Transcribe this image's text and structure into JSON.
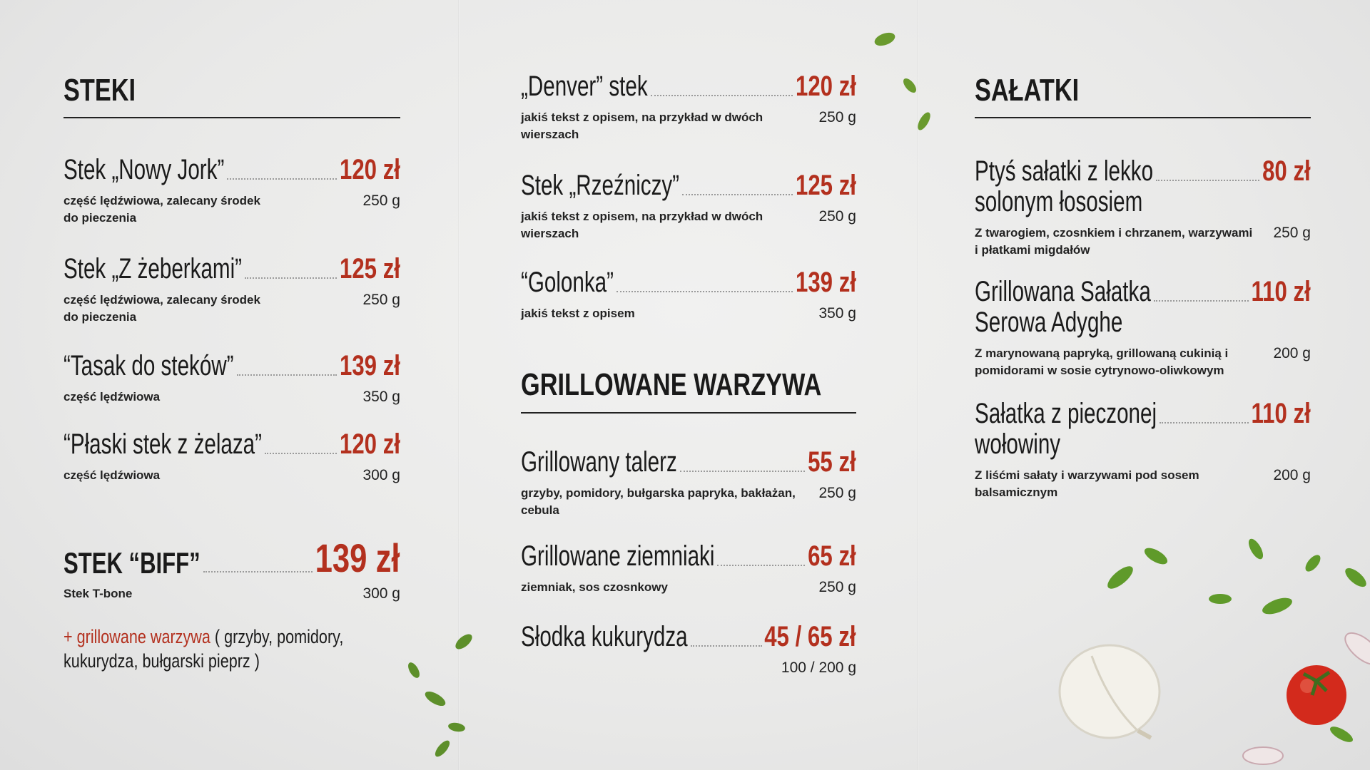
{
  "colors": {
    "price": "#b3301e",
    "text": "#1a1a1a",
    "background": "#ececec"
  },
  "steki": {
    "title": "STEKI",
    "items": [
      {
        "name": "Stek „Nowy Jork”",
        "price": "120 zł",
        "desc": "część lędźwiowa, zalecany środek do pieczenia",
        "weight": "250 g"
      },
      {
        "name": "Stek „Z żeberkami”",
        "price": "125 zł",
        "desc": "część lędźwiowa, zalecany środek do pieczenia",
        "weight": "250 g"
      },
      {
        "name": "“Tasak do steków”",
        "price": "139 zł",
        "desc": "część lędźwiowa",
        "weight": "350 g"
      },
      {
        "name": "“Płaski stek z żelaza”",
        "price": "120 zł",
        "desc": "część lędźwiowa",
        "weight": "300 g"
      }
    ],
    "biff": {
      "name": "STEK “BIFF”",
      "price": "139 zł",
      "desc": "Stek T-bone",
      "weight": "300 g",
      "extra_red": "+ grillowane warzywa",
      "extra_rest": " ( grzyby, pomidory, kukurydza, bułgarski pieprz )"
    }
  },
  "middle": {
    "items": [
      {
        "name": "„Denver” stek",
        "price": "120 zł",
        "desc": "jakiś tekst z opisem, na przykład w dwóch wierszach",
        "weight": "250 g"
      },
      {
        "name": "Stek „Rzeźniczy”",
        "price": "125 zł",
        "desc": "jakiś tekst z opisem, na przykład w dwóch wierszach",
        "weight": "250 g"
      },
      {
        "name": "“Golonka”",
        "price": "139 zł",
        "desc": "jakiś tekst z opisem",
        "weight": "350 g"
      }
    ]
  },
  "warzywa": {
    "title": "GRILLOWANE WARZYWA",
    "items": [
      {
        "name": "Grillowany talerz",
        "price": "55 zł",
        "desc": "grzyby, pomidory, bułgarska papryka, bakłażan, cebula",
        "weight": "250 g"
      },
      {
        "name": "Grillowane ziemniaki",
        "price": "65 zł",
        "desc": "ziemniak, sos czosnkowy",
        "weight": "250 g"
      },
      {
        "name": "Słodka kukurydza",
        "price": "45 / 65 zł",
        "desc": "",
        "weight": "100 / 200 g"
      }
    ]
  },
  "salatki": {
    "title": "SAŁATKI",
    "items": [
      {
        "name": "Ptyś sałatki z lekko",
        "name2": "solonym łososiem",
        "price": "80 zł",
        "desc": "Z twarogiem, czosnkiem i chrzanem, warzywami i płatkami migdałów",
        "weight": "250 g"
      },
      {
        "name": "Grillowana Sałatka",
        "name2": "Serowa Adyghe",
        "price": "110 zł",
        "desc": "Z marynowaną papryką, grillowaną cukinią i pomidorami w sosie cytrynowo-oliwkowym",
        "weight": "200 g"
      },
      {
        "name": "Sałatka z pieczonej",
        "name2": "wołowiny",
        "price": "110 zł",
        "desc": "Z liśćmi sałaty i warzywami pod sosem balsamicznym",
        "weight": "200 g"
      }
    ]
  },
  "decorations": [
    "parsley-leaves",
    "garlic-bulb",
    "tomato",
    "garlic-clove"
  ]
}
